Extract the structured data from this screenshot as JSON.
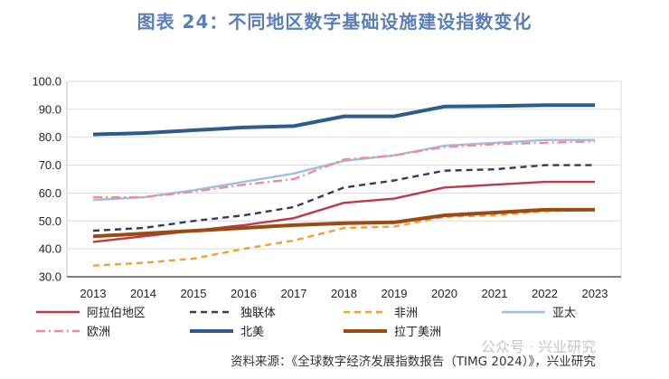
{
  "title": "图表 24：不同地区数字基础设施建设指数变化",
  "source": "资料来源：《全球数字经济发展指数报告（TIMG 2024）》，兴业研究",
  "watermark": "公众号 · 兴业研究",
  "chart_data": {
    "type": "line",
    "x": [
      "2013",
      "2014",
      "2015",
      "2016",
      "2017",
      "2018",
      "2019",
      "2020",
      "2021",
      "2022",
      "2023"
    ],
    "y_ticks": [
      "30.0",
      "40.0",
      "50.0",
      "60.0",
      "70.0",
      "80.0",
      "90.0",
      "100.0"
    ],
    "ylim": [
      30,
      100
    ],
    "grid": "horizontal",
    "legend_placement": "bottom",
    "series": [
      {
        "name": "阿拉伯地区",
        "color": "#c0394b",
        "style": "solid",
        "values": [
          42.5,
          44.5,
          46.5,
          48.5,
          51,
          56.5,
          58,
          62,
          63,
          64,
          64
        ]
      },
      {
        "name": "独联体",
        "color": "#2c3e5c",
        "style": "dash",
        "values": [
          46.5,
          47.5,
          50,
          52,
          55,
          62,
          64.5,
          68,
          68.5,
          70,
          70
        ]
      },
      {
        "name": "非洲",
        "color": "#f0a030",
        "style": "dash",
        "values": [
          34,
          35,
          36.5,
          40,
          43,
          47.5,
          48,
          51.5,
          52,
          53.5,
          54
        ]
      },
      {
        "name": "亚太",
        "color": "#9ec0e0",
        "style": "solid",
        "values": [
          57.5,
          58.5,
          61,
          64,
          67,
          71.5,
          73.5,
          77,
          78,
          79,
          79
        ]
      },
      {
        "name": "欧洲",
        "color": "#f08aa0",
        "style": "dashdot",
        "values": [
          58.5,
          58.5,
          60.5,
          63,
          65,
          72,
          73.5,
          76.5,
          77.5,
          78,
          78.5
        ]
      },
      {
        "name": "北美",
        "color": "#2e5a8c",
        "style": "solid",
        "values": [
          81,
          81.5,
          82.5,
          83.5,
          84,
          87.5,
          87.5,
          91,
          91.2,
          91.5,
          91.5
        ]
      },
      {
        "name": "拉丁美洲",
        "color": "#9c4a14",
        "style": "solid",
        "values": [
          44.5,
          45.5,
          46.5,
          47.5,
          48.5,
          49.2,
          49.5,
          52,
          53,
          54,
          54
        ]
      }
    ]
  }
}
